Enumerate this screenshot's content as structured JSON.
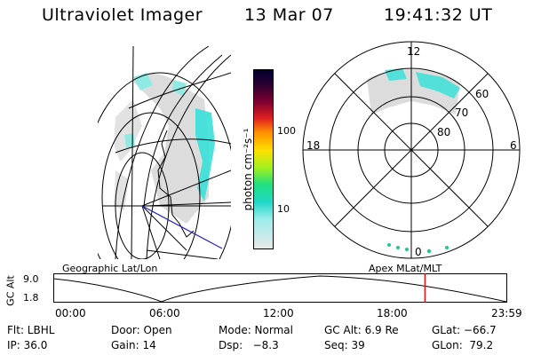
{
  "header": {
    "instrument": "Ultraviolet Imager",
    "date": "13 Mar 07",
    "time": "19:41:32 UT"
  },
  "colorbar": {
    "unit_label": "photon cm⁻²s⁻¹",
    "ticks": [
      "100",
      "10"
    ]
  },
  "polar_plot": {
    "mlt_labels": {
      "top": "12",
      "left": "18",
      "right": "6",
      "bottom": "0"
    },
    "lat_labels": [
      "60",
      "70",
      "80"
    ]
  },
  "timeline": {
    "left_caption": "Geographic Lat/Lon",
    "right_caption": "Apex MLat/MLT",
    "axis_label": "GC Alt",
    "y_ticks": [
      "9.0",
      "1.8"
    ],
    "x_ticks": [
      "00:00",
      "06:00",
      "12:00",
      "18:00",
      "23:59"
    ],
    "marker_time_hours": 19.69
  },
  "status": {
    "flt": "Flt: LBHL",
    "door": "Door: Open",
    "mode": "Mode: Normal",
    "gc_alt": "GC Alt: 6.9 Re",
    "glat": "GLat: −66.7",
    "ip": "IP: 36.0",
    "gain": "Gain: 14",
    "dsp": "Dsp:   −8.3",
    "seq": "Seq: 39",
    "glon": "GLon:  79.2"
  },
  "colors": {
    "marker": "#e01010",
    "track_line": "#2020c0",
    "aurora_bright": "#39e0d8",
    "aurora_faint": "#dcdcdc"
  }
}
